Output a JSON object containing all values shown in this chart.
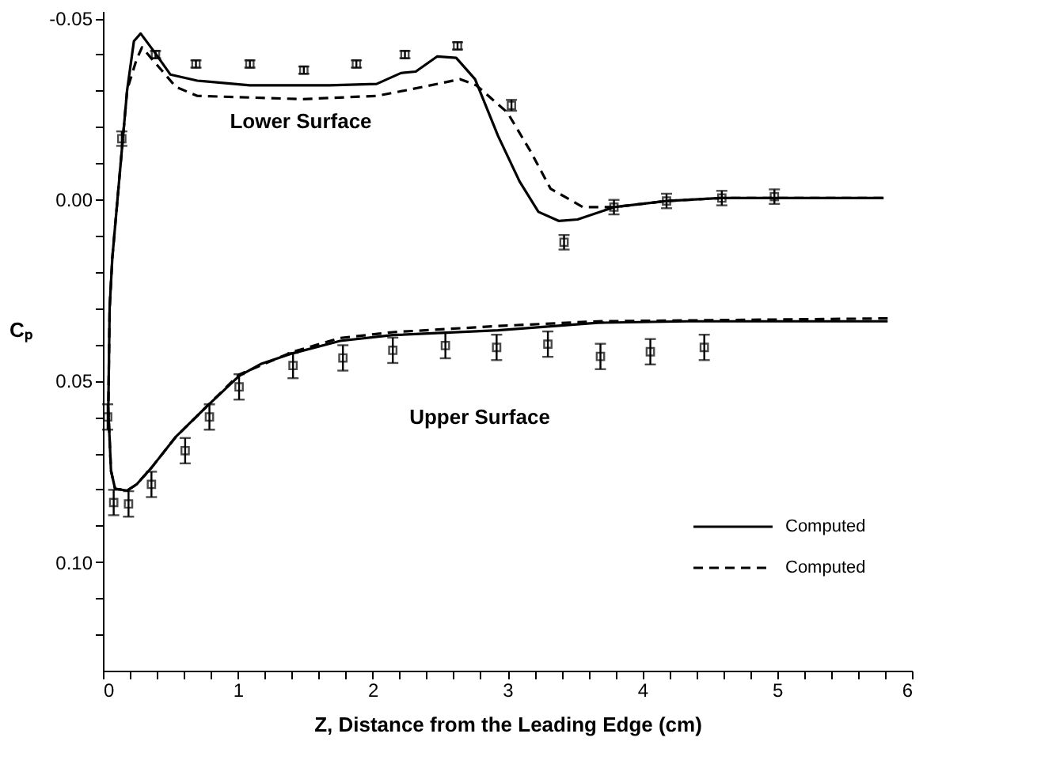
{
  "chart_data": {
    "type": "line",
    "xlabel": "Z, Distance from the Leading Edge (cm)",
    "ylabel": "Cₚ",
    "xlim": [
      0,
      6
    ],
    "ylim": [
      0.13,
      -0.052
    ],
    "xticks": [
      0,
      {
        "value": 0.2,
        "label": null
      },
      {
        "value": 0.4,
        "label": null
      },
      {
        "value": 0.6,
        "label": null
      },
      {
        "value": 0.8,
        "label": null
      },
      1,
      {
        "value": 1.2,
        "label": null
      },
      {
        "value": 1.4,
        "label": null
      },
      {
        "value": 1.6,
        "label": null
      },
      {
        "value": 1.8,
        "label": null
      },
      2,
      {
        "value": 2.2,
        "label": null
      },
      {
        "value": 2.4,
        "label": null
      },
      {
        "value": 2.6,
        "label": null
      },
      {
        "value": 2.8,
        "label": null
      },
      3,
      {
        "value": 3.2,
        "label": null
      },
      {
        "value": 3.4,
        "label": null
      },
      {
        "value": 3.6,
        "label": null
      },
      {
        "value": 3.8,
        "label": null
      },
      4,
      {
        "value": 4.2,
        "label": null
      },
      {
        "value": 4.4,
        "label": null
      },
      {
        "value": 4.6,
        "label": null
      },
      {
        "value": 4.8,
        "label": null
      },
      5,
      {
        "value": 5.2,
        "label": null
      },
      {
        "value": 5.4,
        "label": null
      },
      {
        "value": 5.6,
        "label": null
      },
      {
        "value": 5.8,
        "label": null
      },
      6
    ],
    "yticks": [
      {
        "value": -0.05,
        "label": "-0.05"
      },
      {
        "value": -0.04,
        "label": null
      },
      {
        "value": -0.03,
        "label": null
      },
      {
        "value": -0.02,
        "label": null
      },
      {
        "value": -0.01,
        "label": null
      },
      {
        "value": 0,
        "label": "0.00"
      },
      {
        "value": 0.01,
        "label": null
      },
      {
        "value": 0.02,
        "label": null
      },
      {
        "value": 0.03,
        "label": null
      },
      {
        "value": 0.04,
        "label": null
      },
      {
        "value": 0.05,
        "label": "0.05"
      },
      {
        "value": 0.06,
        "label": null
      },
      {
        "value": 0.07,
        "label": null
      },
      {
        "value": 0.08,
        "label": null
      },
      {
        "value": 0.09,
        "label": null
      },
      {
        "value": 0.1,
        "label": "0.10"
      },
      {
        "value": 0.11,
        "label": null
      },
      {
        "value": 0.12,
        "label": null
      }
    ],
    "grid": false,
    "legend": "bottom right",
    "annotations": [
      "Lower Surface",
      "Upper Surface"
    ],
    "series": [
      {
        "name": "Computed",
        "color": "#000000",
        "line_style": "solid",
        "x": [
          5.82,
          4.34,
          3.67,
          2.93,
          2.15,
          1.76,
          1.41,
          1.17,
          1.01,
          0.77,
          0.54,
          0.36,
          0.25,
          0.18,
          0.09,
          0.06,
          0.04,
          0.05,
          0.07,
          0.18,
          0.23,
          0.28,
          0.39,
          0.5,
          0.7,
          1.09,
          1.68,
          2.03,
          2.21,
          2.32,
          2.48,
          2.62,
          2.76,
          2.93,
          3.09,
          3.23,
          3.38,
          3.52,
          3.79,
          4.18,
          4.58,
          5.79
        ],
        "values": [
          0.0336,
          0.0336,
          0.034,
          0.0361,
          0.0374,
          0.039,
          0.0424,
          0.0454,
          0.0487,
          0.0571,
          0.0655,
          0.074,
          0.0786,
          0.0803,
          0.0798,
          0.0748,
          0.058,
          0.0298,
          0.016,
          -0.0303,
          -0.0437,
          -0.0458,
          -0.0403,
          -0.0345,
          -0.0328,
          -0.0315,
          -0.0315,
          -0.0319,
          -0.0349,
          -0.0353,
          -0.0395,
          -0.0391,
          -0.0332,
          -0.0176,
          -0.005,
          0.0034,
          0.0059,
          0.0055,
          0.0021,
          0.0004,
          -0.0004,
          -0.0004
        ]
      },
      {
        "name": "Computed",
        "color": "#000000",
        "line_style": "dashed",
        "x": [
          5.82,
          3.67,
          2.93,
          2.15,
          1.76,
          1.41,
          1.01,
          0.77,
          0.54,
          0.36,
          0.25,
          0.18,
          0.09,
          0.06,
          0.04,
          0.05,
          0.07,
          0.18,
          0.25,
          0.29,
          0.54,
          0.7,
          1.48,
          2.03,
          2.27,
          2.65,
          2.77,
          3.0,
          3.17,
          3.32,
          3.56,
          3.79,
          4.18,
          4.58,
          5.79
        ],
        "values": [
          0.0328,
          0.0336,
          0.0349,
          0.0366,
          0.0382,
          0.042,
          0.0483,
          0.0571,
          0.0655,
          0.074,
          0.0786,
          0.0803,
          0.0798,
          0.0748,
          0.058,
          0.0298,
          0.016,
          -0.0303,
          -0.0387,
          -0.042,
          -0.0311,
          -0.0286,
          -0.0277,
          -0.0286,
          -0.0303,
          -0.0332,
          -0.0315,
          -0.024,
          -0.0134,
          -0.003,
          0.0021,
          0.0021,
          0.0004,
          -0.0004,
          -0.0004
        ]
      },
      {
        "color": "#000000",
        "type": "scatter",
        "marker": "square",
        "x": [
          0.14,
          0.39,
          0.69,
          1.09,
          1.49,
          1.88,
          2.24,
          2.63,
          3.03,
          3.42,
          3.79,
          4.18,
          4.59,
          4.98
        ],
        "values": [
          -0.0168,
          -0.04,
          -0.0374,
          -0.0374,
          -0.0357,
          -0.0374,
          -0.04,
          -0.0424,
          -0.026,
          0.0118,
          0.0021,
          0.0004,
          -0.0004,
          -0.0008
        ],
        "errors": [
          0.002,
          0.001,
          0.001,
          0.001,
          0.001,
          0.001,
          0.001,
          0.001,
          0.0015,
          0.002,
          0.002,
          0.002,
          0.002,
          0.002
        ]
      },
      {
        "color": "#000000",
        "type": "scatter",
        "marker": "square",
        "x": [
          0.035,
          0.08,
          0.19,
          0.36,
          0.61,
          0.79,
          1.01,
          1.41,
          1.78,
          2.15,
          2.54,
          2.92,
          3.3,
          3.69,
          4.06,
          4.46
        ],
        "values": [
          0.06,
          0.0836,
          0.084,
          0.0786,
          0.0693,
          0.06,
          0.0517,
          0.0458,
          0.0437,
          0.0416,
          0.0403,
          0.0408,
          0.0399,
          0.0433,
          0.042,
          0.0408
        ],
        "errors": [
          0.0035,
          0.0035,
          0.0035,
          0.0035,
          0.0035,
          0.0035,
          0.0035,
          0.0035,
          0.0035,
          0.0035,
          0.0035,
          0.0035,
          0.0035,
          0.0035,
          0.0035,
          0.0035
        ]
      }
    ]
  }
}
